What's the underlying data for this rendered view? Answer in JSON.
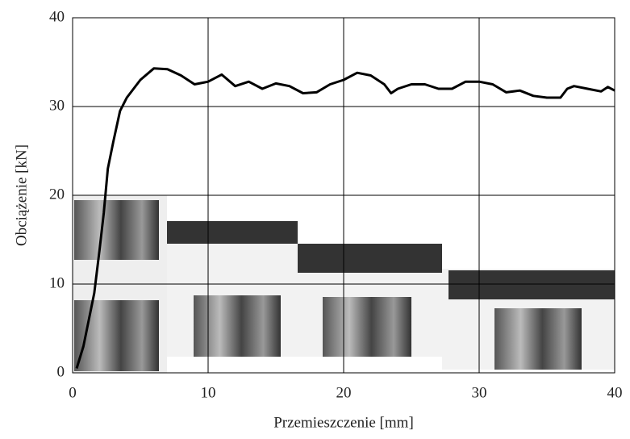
{
  "chart_data": {
    "type": "line",
    "x_label": "Przemieszczenie [mm]",
    "y_label": "Obciążenie [kN]",
    "x": [
      0.3,
      0.8,
      1.2,
      1.6,
      2,
      2.3,
      2.6,
      3,
      3.5,
      4,
      5,
      6,
      7,
      8,
      9,
      10,
      11,
      12,
      13,
      14,
      15,
      16,
      17,
      18,
      19,
      20,
      21,
      22,
      23,
      23.5,
      24,
      25,
      26,
      27,
      28,
      29,
      30,
      31,
      32,
      33,
      34,
      35,
      36,
      36.5,
      37,
      38,
      39,
      39.5,
      40
    ],
    "values": [
      0.5,
      3,
      6,
      9,
      14,
      18,
      23,
      26,
      29.5,
      31,
      33,
      34.3,
      34.2,
      33.5,
      32.5,
      32.8,
      33.6,
      32.3,
      32.8,
      32,
      32.6,
      32.3,
      31.5,
      31.6,
      32.5,
      33,
      33.8,
      33.5,
      32.5,
      31.5,
      32,
      32.5,
      32.5,
      32,
      32,
      32.8,
      32.8,
      32.5,
      31.6,
      31.8,
      31.2,
      31,
      31,
      32,
      32.3,
      32,
      31.7,
      32.2,
      31.8
    ],
    "color": "#000000",
    "xlim": [
      0,
      40
    ],
    "xticks": [
      0,
      10,
      20,
      30,
      40
    ],
    "ylim": [
      0,
      40
    ],
    "yticks": [
      0,
      10,
      20,
      30,
      40
    ],
    "grid": true
  }
}
